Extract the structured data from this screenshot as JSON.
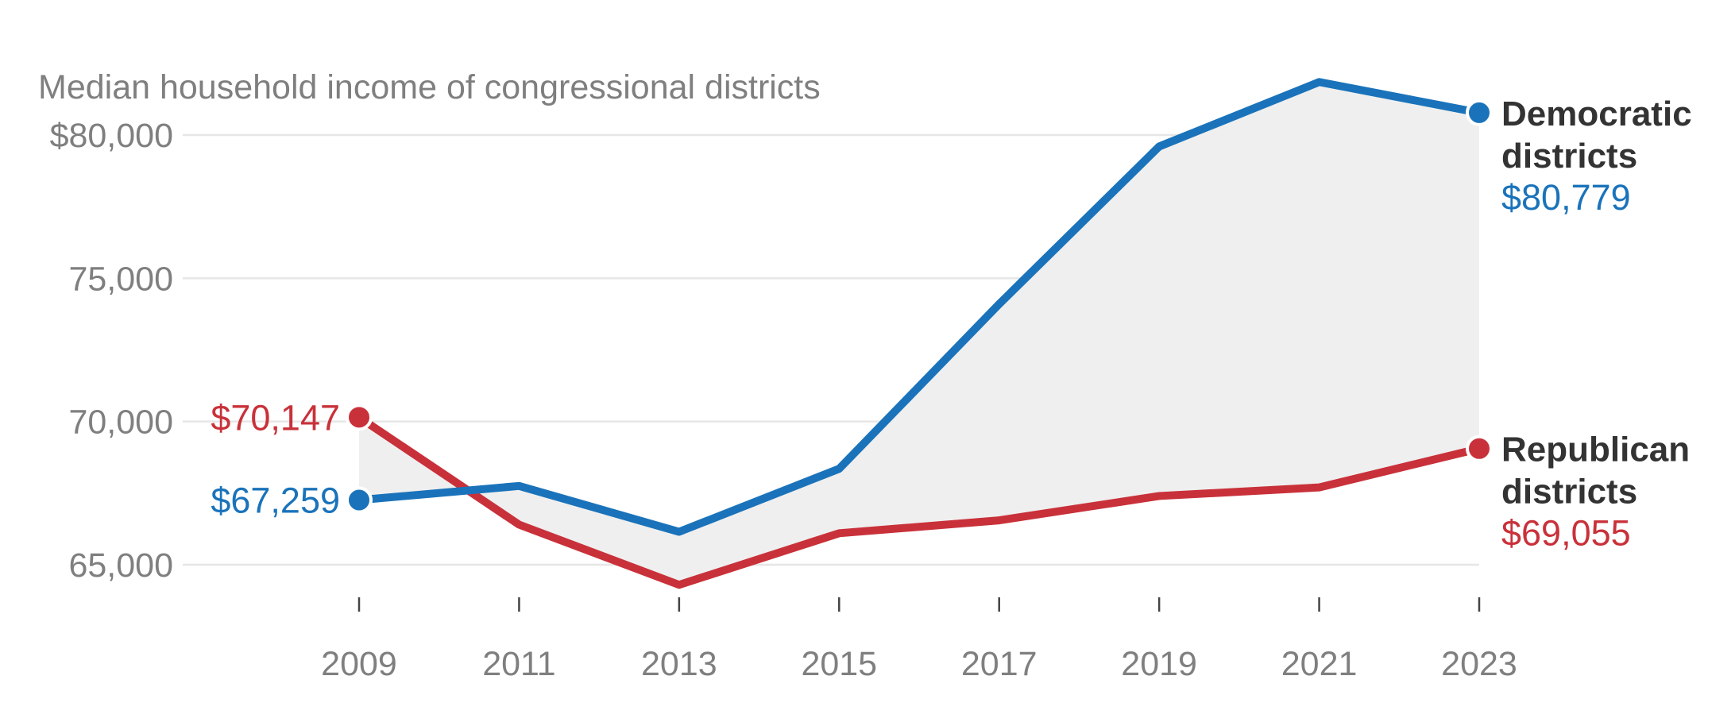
{
  "chart_data": {
    "type": "line",
    "title": "Median household income of congressional districts",
    "x": [
      2009,
      2011,
      2013,
      2015,
      2017,
      2019,
      2021,
      2023
    ],
    "x_tick_labels": [
      "2009",
      "2011",
      "2013",
      "2015",
      "2017",
      "2019",
      "2021",
      "2023"
    ],
    "y_ticks": [
      65000,
      70000,
      75000,
      80000
    ],
    "y_tick_labels": [
      "65,000",
      "70,000",
      "75,000",
      "$80,000"
    ],
    "ylim": [
      62500,
      82000
    ],
    "grid": true,
    "shade_between_series": true,
    "series": [
      {
        "name": "Democratic districts",
        "name_lines": [
          "Democratic",
          "districts"
        ],
        "color": "#1a73ba",
        "values": [
          67259,
          67750,
          66150,
          68350,
          74100,
          79600,
          81850,
          80779
        ],
        "start_label": "$67,259",
        "end_label": "$80,779"
      },
      {
        "name": "Republican districts",
        "name_lines": [
          "Republican",
          "districts"
        ],
        "color": "#c9313a",
        "values": [
          70147,
          66400,
          64300,
          66100,
          66550,
          67400,
          67700,
          69055
        ],
        "start_label": "$70,147",
        "end_label": "$69,055"
      }
    ]
  }
}
